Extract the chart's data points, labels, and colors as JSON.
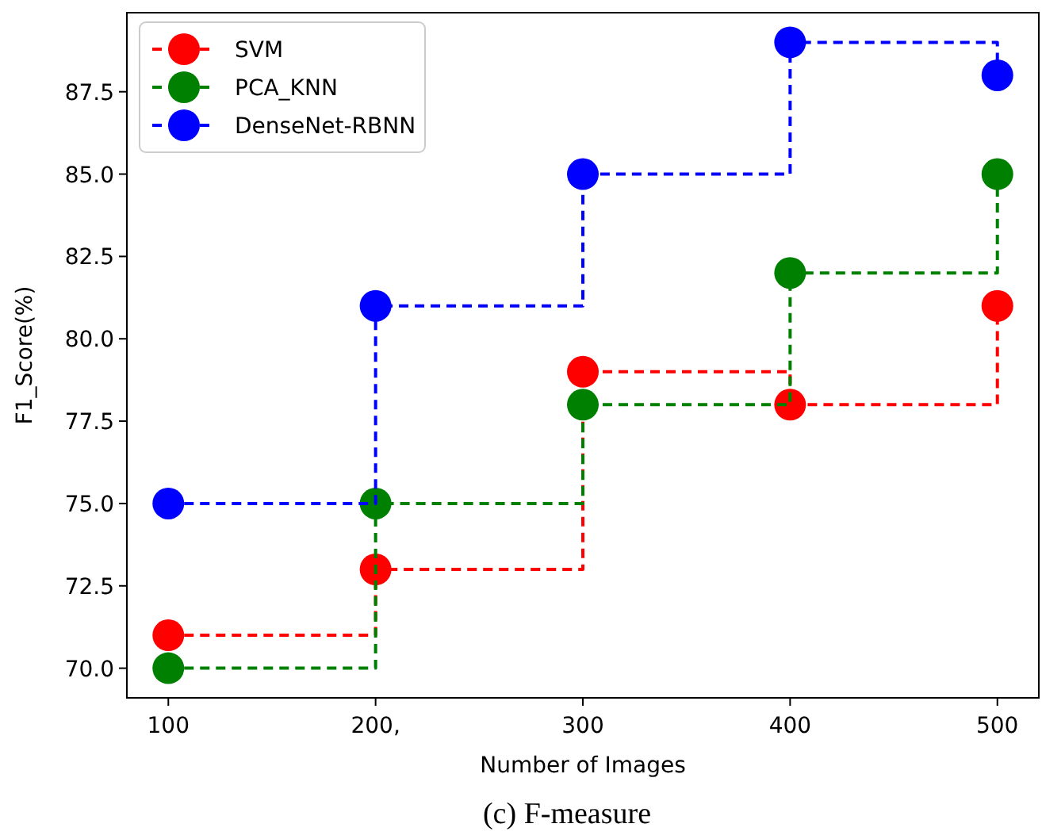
{
  "chart_data": {
    "type": "step",
    "xlabel": "Number of Images",
    "ylabel": "F1_Score(%)",
    "annotations": [
      "(c) F-measure"
    ],
    "x": [
      100,
      200,
      300,
      400,
      500
    ],
    "series": [
      {
        "name": "SVM",
        "color": "#ff0000",
        "values": [
          71,
          73,
          79,
          78,
          81
        ]
      },
      {
        "name": "PCA_KNN",
        "color": "#008000",
        "values": [
          70,
          75,
          78,
          82,
          85
        ]
      },
      {
        "name": "DenseNet-RBNN",
        "color": "#0000ff",
        "values": [
          75,
          81,
          85,
          89,
          88
        ]
      }
    ],
    "xlim": [
      80,
      520
    ],
    "ylim": [
      69.1,
      89.9
    ],
    "xticks": [
      100,
      {
        "value": 200,
        "label": "200,"
      },
      300,
      400,
      500
    ],
    "yticks": [
      {
        "value": 70,
        "label": "70.0"
      },
      {
        "value": 72.5,
        "label": "72.5"
      },
      {
        "value": 75,
        "label": "75.0"
      },
      {
        "value": 77.5,
        "label": "77.5"
      },
      {
        "value": 80,
        "label": "80.0"
      },
      {
        "value": 82.5,
        "label": "82.5"
      },
      {
        "value": 85,
        "label": "85.0"
      },
      {
        "value": 87.5,
        "label": "87.5"
      }
    ],
    "grid": false,
    "legend": "top left",
    "marker": "circle",
    "line_style": "dashed"
  }
}
